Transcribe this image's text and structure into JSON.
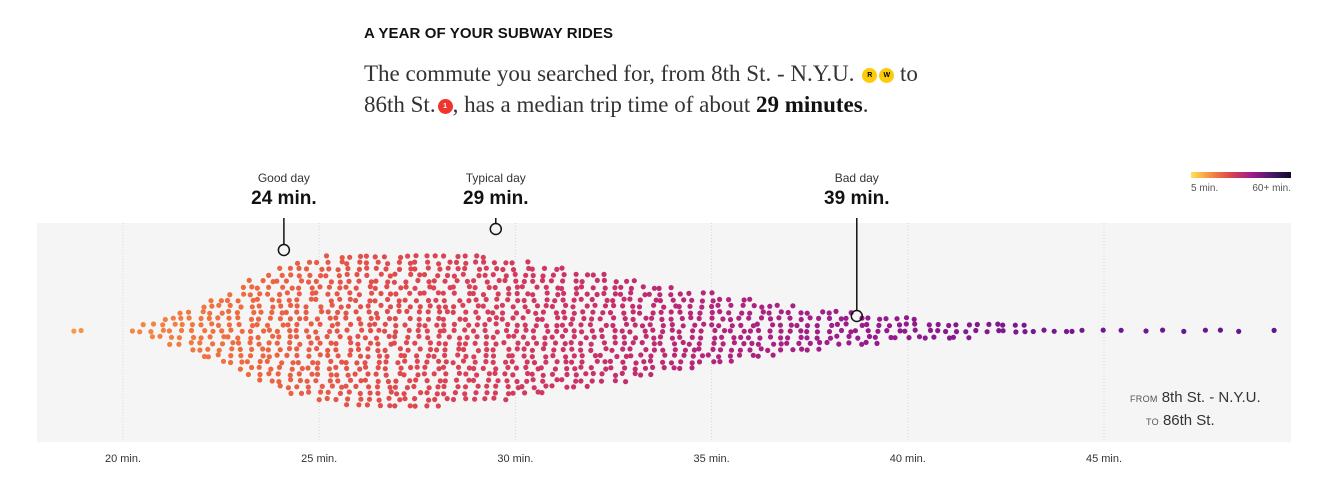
{
  "header": {
    "kicker": "A YEAR OF YOUR SUBWAY RIDES",
    "sentence_part1": "The commute you searched for, from 8th St. - N.Y.U.",
    "sentence_part2": "to",
    "sentence_part3": "86th St.",
    "sentence_part4": ", has a median trip time of about",
    "median_value": "29 minutes",
    "sentence_end": ".",
    "bullets": [
      {
        "text": "R",
        "color": "#fccc0a"
      },
      {
        "text": "W",
        "color": "#fccc0a"
      },
      {
        "text": "1",
        "color": "#ee352e"
      }
    ]
  },
  "annotations": [
    {
      "label": "Good day",
      "value": "24 min.",
      "minutes": 24.1
    },
    {
      "label": "Typical day",
      "value": "29 min.",
      "minutes": 29.5
    },
    {
      "label": "Bad day",
      "value": "39 min.",
      "minutes": 38.7
    }
  ],
  "legend": {
    "min_label": "5 min.",
    "max_label": "60+ min."
  },
  "route": {
    "from_prefix": "FROM",
    "from": "8th St. - N.Y.U.",
    "to_prefix": "TO",
    "to": "86th St."
  },
  "chart_data": {
    "type": "scatter",
    "subtype": "beeswarm",
    "xlabel": "",
    "ylabel": "",
    "x_ticks": [
      "20 min.",
      "25 min.",
      "30 min.",
      "35 min.",
      "40 min.",
      "45 min."
    ],
    "x_tick_values": [
      20,
      25,
      30,
      35,
      40,
      45
    ],
    "xlim": [
      17.8,
      49.8
    ],
    "grid": true,
    "color_scale": {
      "min": 5,
      "max": 60,
      "colors": [
        "#ffe05a",
        "#f58b3f",
        "#d9434f",
        "#a21c8c",
        "#4a1a6b",
        "#0f0a2a"
      ]
    },
    "distribution": {
      "bins_minutes": [
        18.75,
        19,
        20.25,
        20.5,
        20.75,
        21,
        21.25,
        21.5,
        21.75,
        22,
        22.25,
        22.5,
        22.75,
        23,
        23.25,
        23.5,
        23.75,
        24,
        24.25,
        24.5,
        24.75,
        25,
        25.25,
        25.5,
        25.75,
        26,
        26.25,
        26.5,
        26.75,
        27,
        27.25,
        27.5,
        27.75,
        28,
        28.25,
        28.5,
        28.75,
        29,
        29.25,
        29.5,
        29.75,
        30,
        30.25,
        30.5,
        30.75,
        31,
        31.25,
        31.5,
        31.75,
        32,
        32.25,
        32.5,
        32.75,
        33,
        33.25,
        33.5,
        33.75,
        34,
        34.25,
        34.5,
        34.75,
        35,
        35.25,
        35.5,
        35.75,
        36,
        36.25,
        36.5,
        36.75,
        37,
        37.25,
        37.5,
        37.75,
        38,
        38.25,
        38.5,
        38.75,
        39,
        39.25,
        39.5,
        39.75,
        40,
        40.25,
        40.5,
        40.75,
        41,
        41.25,
        41.5,
        41.75,
        42,
        42.25,
        42.5,
        42.75,
        43,
        43.25,
        43.5,
        43.75,
        44,
        44.25,
        44.5,
        45,
        45.5,
        46,
        46.5,
        47,
        47.5,
        48,
        48.5,
        49.3
      ],
      "counts": [
        1,
        1,
        1,
        2,
        3,
        4,
        5,
        6,
        7,
        9,
        10,
        11,
        12,
        14,
        16,
        17,
        18,
        20,
        21,
        22,
        22,
        23,
        24,
        24,
        25,
        25,
        25,
        25,
        25,
        25,
        25,
        25,
        25,
        25,
        24,
        24,
        24,
        24,
        24,
        23,
        23,
        22,
        22,
        21,
        21,
        20,
        20,
        19,
        19,
        18,
        18,
        17,
        17,
        16,
        15,
        15,
        14,
        14,
        13,
        13,
        12,
        12,
        11,
        11,
        10,
        10,
        9,
        9,
        8,
        8,
        7,
        7,
        7,
        6,
        6,
        6,
        5,
        5,
        5,
        4,
        4,
        4,
        4,
        3,
        3,
        3,
        3,
        3,
        2,
        2,
        2,
        2,
        2,
        2,
        1,
        1,
        1,
        1,
        1,
        1,
        1,
        1,
        1,
        1,
        1,
        1,
        1,
        1,
        1
      ]
    }
  }
}
